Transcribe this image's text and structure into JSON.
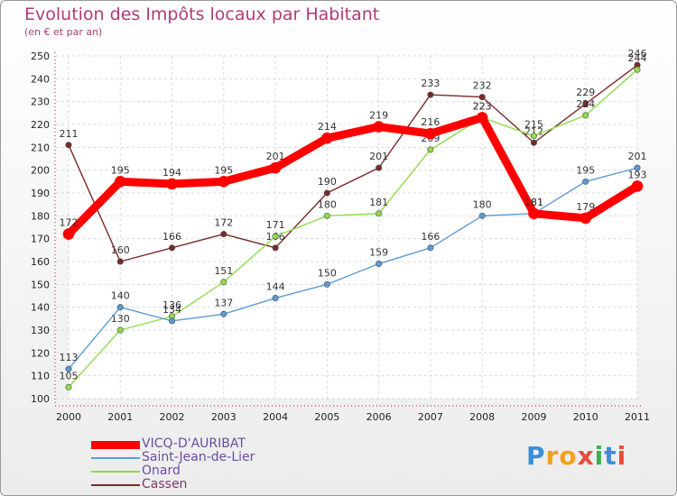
{
  "title": "Evolution des Impôts locaux par Habitant",
  "subtitle": "(en € et par an)",
  "brand": "Proxiti",
  "chart_data": {
    "type": "line",
    "x": [
      "2000",
      "2001",
      "2002",
      "2003",
      "2004",
      "2005",
      "2006",
      "2007",
      "2008",
      "2009",
      "2010",
      "2011"
    ],
    "yticks": [
      100,
      110,
      120,
      130,
      140,
      150,
      160,
      170,
      180,
      190,
      200,
      210,
      220,
      230,
      240,
      250
    ],
    "ylim": [
      100,
      250
    ],
    "grid": true,
    "series": [
      {
        "name": "VICQ-D'AURIBAT",
        "color": "#ff0000",
        "values": [
          172,
          195,
          194,
          195,
          201,
          214,
          219,
          216,
          223,
          181,
          179,
          193
        ]
      },
      {
        "name": "Saint-Jean-de-Lier",
        "color": "#5b9bd5",
        "values": [
          113,
          140,
          134,
          137,
          144,
          150,
          159,
          166,
          180,
          181,
          195,
          201
        ]
      },
      {
        "name": "Onard",
        "color": "#8fdc4c",
        "values": [
          105,
          130,
          136,
          151,
          171,
          180,
          181,
          209,
          223,
          215,
          224,
          244
        ]
      },
      {
        "name": "Cassen",
        "color": "#7b2a2a",
        "values": [
          211,
          160,
          166,
          172,
          166,
          190,
          201,
          233,
          232,
          212,
          229,
          246
        ]
      }
    ]
  }
}
